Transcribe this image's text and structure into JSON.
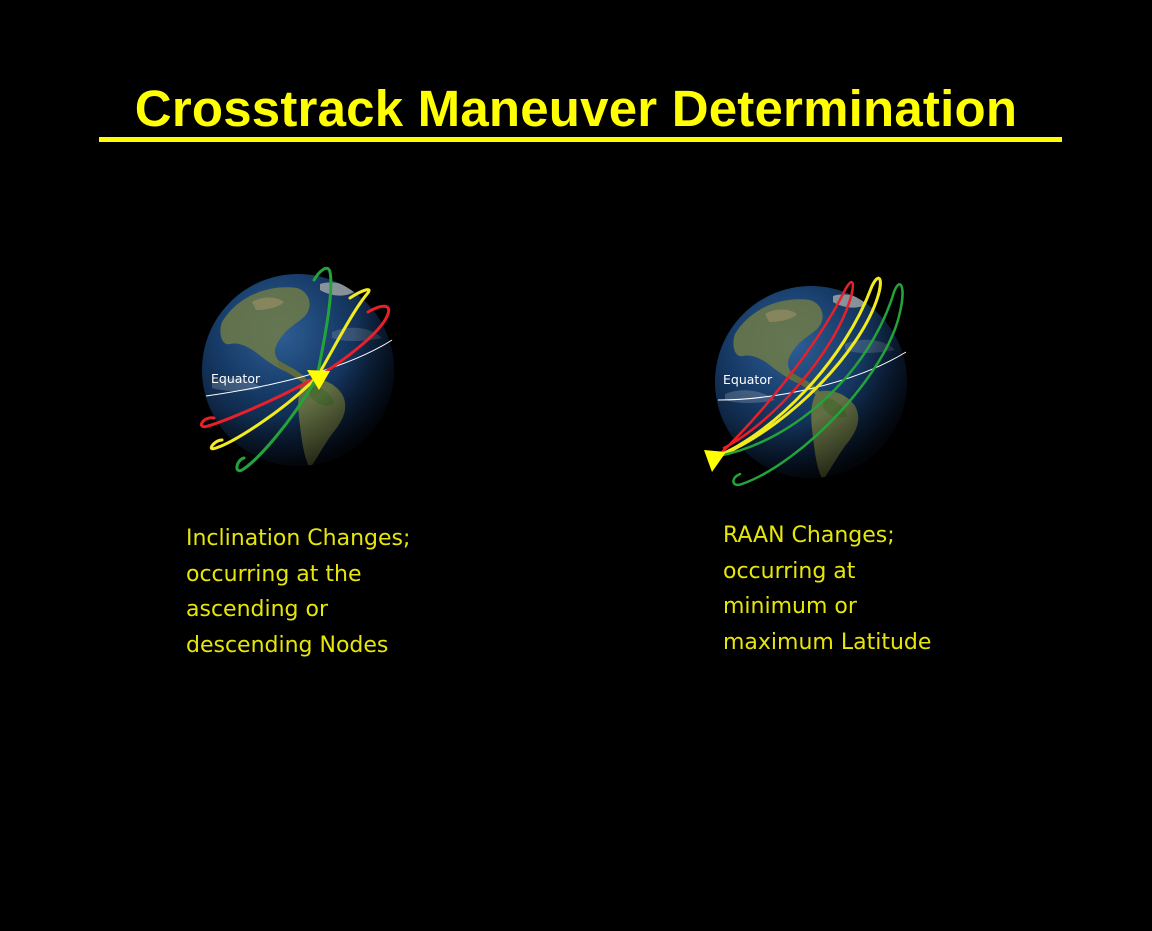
{
  "title": "Crosstrack Maneuver Determination",
  "colors": {
    "background": "#000000",
    "title": "#ffff00",
    "caption": "#e6e60b",
    "orbit_red": "#e8202a",
    "orbit_yellow": "#f2ec1f",
    "orbit_green": "#23a33a",
    "equator_line": "#ffffff",
    "maneuver_marker": "#ffff00"
  },
  "panels": [
    {
      "equator_label": "Equator",
      "icon": "yellow-triangle-marker",
      "caption_lines": [
        "Inclination Changes;",
        "occurring at the",
        "ascending or",
        "descending Nodes"
      ]
    },
    {
      "equator_label": "Equator",
      "icon": "yellow-triangle-marker",
      "caption_lines": [
        "RAAN Changes;",
        "occurring at",
        "minimum or",
        "maximum Latitude"
      ]
    }
  ]
}
